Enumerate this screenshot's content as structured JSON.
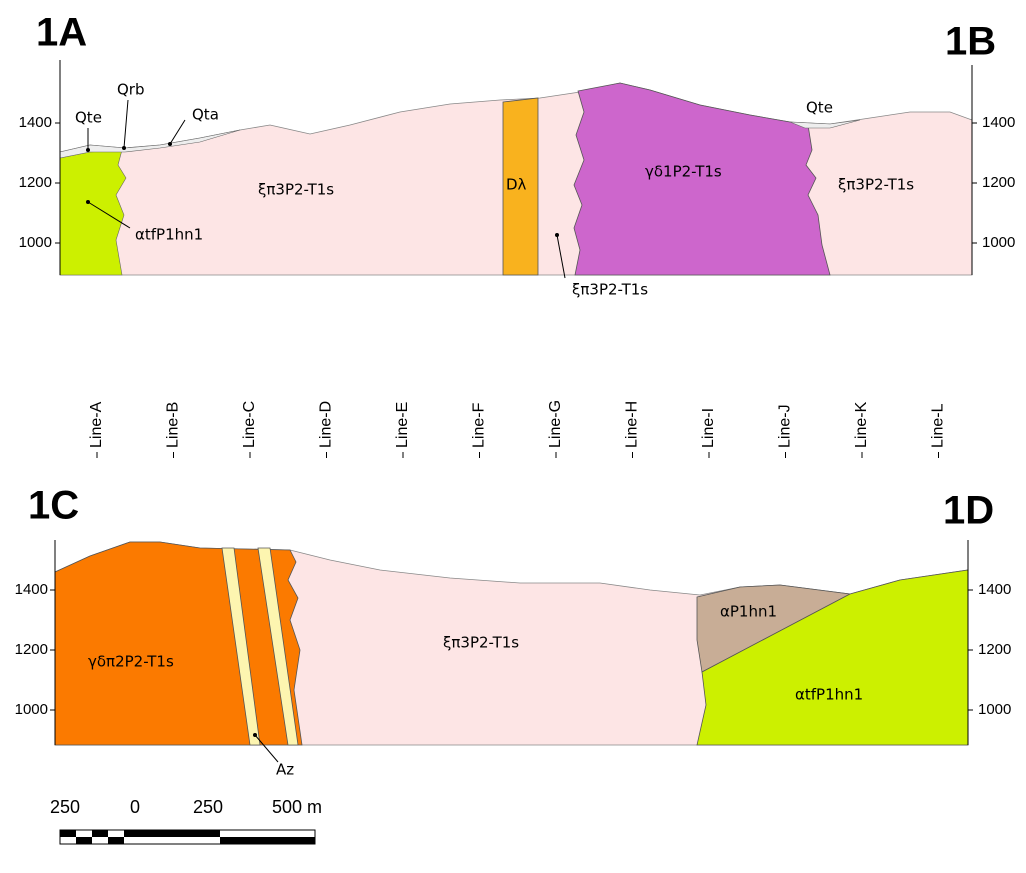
{
  "sections": [
    {
      "left_label": "1A",
      "right_label": "1B",
      "left_ticks": [
        1400,
        1200,
        1000
      ],
      "right_ticks": [
        1400,
        1200,
        1000
      ],
      "labels": [
        "Qte",
        "Qrb",
        "Qta",
        "ξπ3P2-T1s",
        "αtfP1hn1",
        "Dλ",
        "γδ1P2-T1s",
        "ξπ3P2-T1s",
        "ξπ3P2-T1s",
        "Qte"
      ]
    },
    {
      "left_label": "1C",
      "right_label": "1D",
      "left_ticks": [
        1400,
        1200,
        1000
      ],
      "right_ticks": [
        1400,
        1200,
        1000
      ],
      "labels": [
        "γδπ2P2-T1s",
        "ξπ3P2-T1s",
        "αP1hn1",
        "αtfP1hn1",
        "Az"
      ]
    }
  ],
  "lines": [
    "Line-A",
    "Line-B",
    "Line-C",
    "Line-D",
    "Line-E",
    "Line-F",
    "Line-G",
    "Line-H",
    "Line-I",
    "Line-J",
    "Line-K",
    "Line-L"
  ],
  "scale": {
    "labels": [
      "250",
      "0",
      "250",
      "500 m"
    ]
  }
}
